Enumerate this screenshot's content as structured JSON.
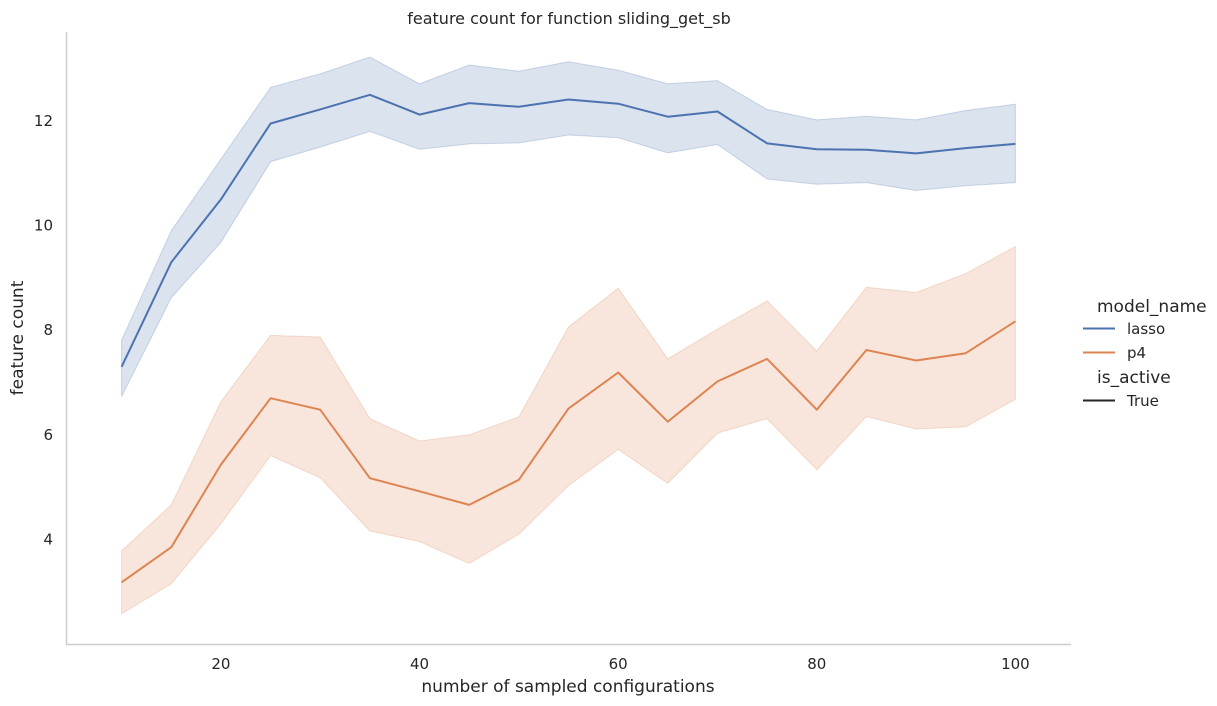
{
  "chart_data": {
    "type": "line",
    "title": "feature count for function sliding_get_sb",
    "xlabel": "number of sampled configurations",
    "ylabel": "feature count",
    "xlim": [
      4.4,
      105.6
    ],
    "ylim": [
      2.0,
      13.7
    ],
    "xticks": [
      20,
      40,
      60,
      80,
      100
    ],
    "yticks": [
      4,
      6,
      8,
      10,
      12
    ],
    "grid": false,
    "legend_position": "right",
    "x": [
      10,
      15,
      20,
      25,
      30,
      35,
      40,
      45,
      50,
      55,
      60,
      65,
      70,
      75,
      80,
      85,
      90,
      95,
      100
    ],
    "series": [
      {
        "name": "lasso",
        "color": "#4c72b0",
        "values": [
          7.3,
          9.3,
          10.5,
          11.95,
          12.22,
          12.5,
          12.12,
          12.34,
          12.27,
          12.41,
          12.33,
          12.08,
          12.18,
          11.57,
          11.46,
          11.45,
          11.38,
          11.48,
          11.56
        ],
        "ci_lower": [
          6.73,
          8.62,
          9.68,
          11.22,
          11.5,
          11.8,
          11.46,
          11.56,
          11.58,
          11.73,
          11.68,
          11.39,
          11.55,
          10.89,
          10.79,
          10.82,
          10.67,
          10.76,
          10.82
        ],
        "ci_upper": [
          7.81,
          9.9,
          11.27,
          12.64,
          12.9,
          13.22,
          12.71,
          13.07,
          12.95,
          13.13,
          12.97,
          12.71,
          12.77,
          12.22,
          12.02,
          12.09,
          12.02,
          12.2,
          12.32
        ]
      },
      {
        "name": "p4",
        "color": "#dd8452",
        "values": [
          3.18,
          3.85,
          5.43,
          6.7,
          6.48,
          5.17,
          4.92,
          4.66,
          5.14,
          6.5,
          7.19,
          6.25,
          7.02,
          7.45,
          6.48,
          7.62,
          7.42,
          7.56,
          8.17
        ],
        "ci_lower": [
          2.58,
          3.15,
          4.3,
          5.6,
          5.18,
          4.16,
          3.96,
          3.54,
          4.1,
          5.03,
          5.72,
          5.07,
          6.03,
          6.31,
          5.33,
          6.35,
          6.11,
          6.15,
          6.68
        ],
        "ci_upper": [
          3.78,
          4.66,
          6.63,
          7.9,
          7.87,
          6.31,
          5.88,
          6.0,
          6.34,
          8.06,
          8.8,
          7.45,
          8.02,
          8.56,
          7.6,
          8.82,
          8.72,
          9.08,
          9.6
        ]
      }
    ],
    "legend": {
      "hue_title": "model_name",
      "hue_entries": [
        {
          "label": "lasso",
          "color": "#4c72b0"
        },
        {
          "label": "p4",
          "color": "#dd8452"
        }
      ],
      "style_title": "is_active",
      "style_entries": [
        {
          "label": "True",
          "color": "#262626"
        }
      ]
    },
    "colors": {
      "axis": "#cccccc",
      "text": "#262626",
      "background": "#ffffff"
    }
  }
}
